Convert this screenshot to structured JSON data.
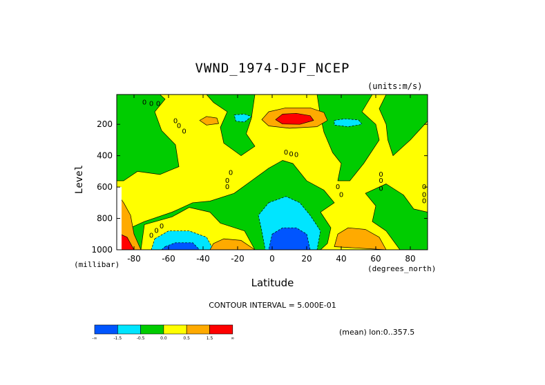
{
  "chart_data": {
    "type": "heatmap",
    "title": "VWND_1974-DJF_NCEP",
    "units": "(units:m/s)",
    "xlabel": "Latitude",
    "ylabel": "Level",
    "x_unit": "(degrees_north)",
    "y_unit": "(millibar)",
    "xlim": [
      -90,
      90
    ],
    "ylim": [
      1000,
      10
    ],
    "x_ticks": [
      "-80",
      "-60",
      "-40",
      "-20",
      "0",
      "20",
      "40",
      "60",
      "80"
    ],
    "x_tick_values": [
      -80,
      -60,
      -40,
      -20,
      0,
      20,
      40,
      60,
      80
    ],
    "y_ticks": [
      "200",
      "400",
      "600",
      "800",
      "1000"
    ],
    "y_tick_values": [
      200,
      400,
      600,
      800,
      1000
    ],
    "contour_interval": "CONTOUR INTERVAL = 5.000E-01",
    "footer": "(mean) lon:0..357.5",
    "colorbar": {
      "labels": [
        "-∞",
        "-1.5",
        "-0.5",
        "0.0",
        "0.5",
        "1.5",
        "∞"
      ],
      "colors": [
        "#0055ff",
        "#00e5ff",
        "#00cc00",
        "#ffff00",
        "#ffaa00",
        "#ff0000"
      ]
    },
    "zero_label": "0",
    "features": [
      {
        "kind": "max",
        "lat": 12,
        "level": 170,
        "level_class": "red"
      },
      {
        "kind": "min",
        "lat": 10,
        "level": 950,
        "level_class": "blue"
      },
      {
        "kind": "min",
        "lat": -52,
        "level": 980,
        "level_class": "blue"
      },
      {
        "kind": "max",
        "lat": -86,
        "level": 970,
        "level_class": "red"
      },
      {
        "kind": "max",
        "lat": -25,
        "level": 985,
        "level_class": "orange"
      },
      {
        "kind": "max",
        "lat": 47,
        "level": 920,
        "level_class": "orange"
      },
      {
        "kind": "min",
        "lat": 43,
        "level": 200,
        "level_class": "cyan"
      },
      {
        "kind": "min",
        "lat": -18,
        "level": 180,
        "level_class": "cyan"
      },
      {
        "kind": "max",
        "lat": -37,
        "level": 180,
        "level_class": "orange"
      },
      {
        "kind": "min",
        "lat": 5,
        "level": 810,
        "level_class": "cyan"
      }
    ]
  }
}
